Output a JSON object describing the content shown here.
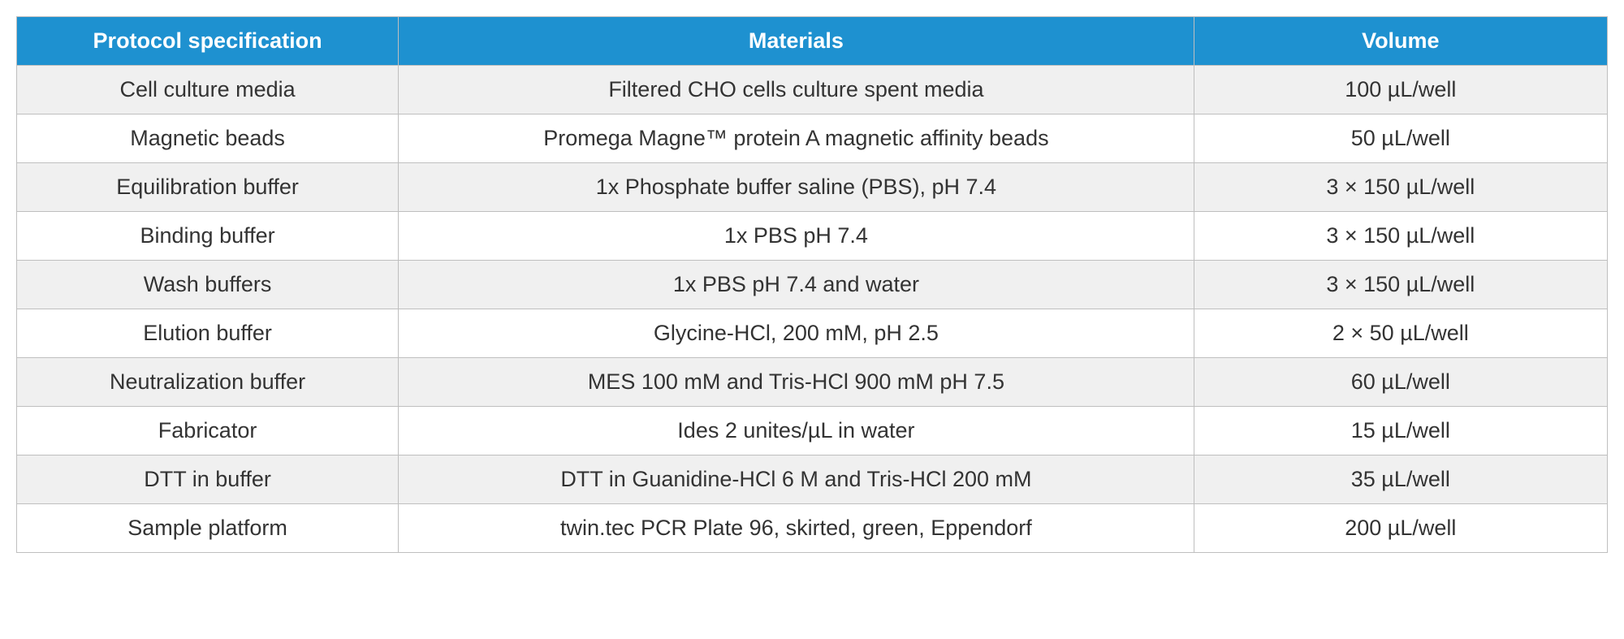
{
  "table": {
    "header_bg_color": "#1e91d0",
    "header_text_color": "#ffffff",
    "row_alt_bg_color": "#f0f0f0",
    "row_bg_color": "#ffffff",
    "border_color": "#bfbfbf",
    "text_color": "#333333",
    "font_size": 27,
    "header_font_size": 27,
    "columns": [
      {
        "label": "Protocol specification",
        "width": "24%"
      },
      {
        "label": "Materials",
        "width": "50%"
      },
      {
        "label": "Volume",
        "width": "26%"
      }
    ],
    "rows": [
      {
        "spec": "Cell culture media",
        "materials": "Filtered CHO cells culture spent media",
        "volume": "100 µL/well"
      },
      {
        "spec": "Magnetic beads",
        "materials": "Promega Magne™ protein A magnetic affinity beads",
        "volume": "50 µL/well"
      },
      {
        "spec": "Equilibration buffer",
        "materials": "1x Phosphate buffer saline (PBS), pH 7.4",
        "volume": "3 × 150 µL/well"
      },
      {
        "spec": "Binding buffer",
        "materials": "1x PBS pH 7.4",
        "volume": "3 × 150 µL/well"
      },
      {
        "spec": "Wash buffers",
        "materials": "1x PBS pH 7.4 and water",
        "volume": "3 × 150 µL/well"
      },
      {
        "spec": "Elution buffer",
        "materials": "Glycine-HCl, 200 mM, pH 2.5",
        "volume": "2 × 50 µL/well"
      },
      {
        "spec": "Neutralization buffer",
        "materials": "MES 100 mM and Tris-HCl 900 mM pH 7.5",
        "volume": "60 µL/well"
      },
      {
        "spec": "Fabricator",
        "materials": "Ides 2 unites/µL in water",
        "volume": "15 µL/well"
      },
      {
        "spec": "DTT in buffer",
        "materials": "DTT in Guanidine-HCl 6 M and Tris-HCl 200 mM",
        "volume": "35 µL/well"
      },
      {
        "spec": "Sample platform",
        "materials": "twin.tec PCR Plate 96, skirted, green, Eppendorf",
        "volume": "200 µL/well"
      }
    ]
  }
}
